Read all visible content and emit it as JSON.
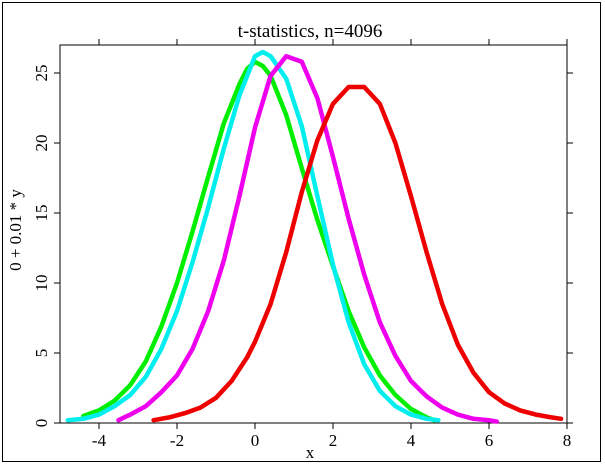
{
  "chart_data": {
    "type": "line",
    "title": "t-statistics, n=4096",
    "xlabel": "x",
    "ylabel": "0 + 0.01 * y",
    "xlim": [
      -5,
      8
    ],
    "ylim": [
      0,
      27
    ],
    "xticks": [
      -4,
      -2,
      0,
      2,
      4,
      6,
      8
    ],
    "xtick_labels": [
      "-4",
      "-2",
      "0",
      "2",
      "4",
      "6",
      "8"
    ],
    "yticks": [
      0,
      5,
      10,
      15,
      20,
      25
    ],
    "ytick_labels": [
      "0",
      "5",
      "10",
      "15",
      "20",
      "25"
    ],
    "grid": false,
    "series": [
      {
        "color": "#00ee00",
        "x": [
          -4.4,
          -4.0,
          -3.6,
          -3.2,
          -2.8,
          -2.4,
          -2.0,
          -1.6,
          -1.2,
          -0.8,
          -0.4,
          -0.2,
          0.0,
          0.2,
          0.4,
          0.8,
          1.2,
          1.6,
          2.0,
          2.4,
          2.8,
          3.2,
          3.6,
          4.0,
          4.4,
          4.6
        ],
        "y": [
          0.5,
          0.9,
          1.6,
          2.7,
          4.4,
          6.9,
          10.0,
          13.7,
          17.6,
          21.4,
          24.2,
          25.3,
          25.8,
          25.5,
          24.8,
          22.0,
          18.2,
          14.5,
          11.2,
          8.0,
          5.4,
          3.4,
          2.0,
          1.0,
          0.4,
          0.2
        ]
      },
      {
        "color": "#00eeee",
        "x": [
          -4.8,
          -4.4,
          -4.0,
          -3.6,
          -3.2,
          -2.8,
          -2.4,
          -2.0,
          -1.6,
          -1.2,
          -0.8,
          -0.4,
          0.0,
          0.2,
          0.4,
          0.8,
          1.2,
          1.6,
          2.0,
          2.4,
          2.8,
          3.2,
          3.6,
          4.0,
          4.4,
          4.7
        ],
        "y": [
          0.2,
          0.3,
          0.6,
          1.2,
          2.0,
          3.3,
          5.3,
          8.0,
          11.5,
          15.4,
          19.6,
          23.4,
          26.2,
          26.5,
          26.2,
          24.6,
          21.2,
          16.2,
          11.3,
          7.2,
          4.2,
          2.3,
          1.2,
          0.6,
          0.3,
          0.2
        ]
      },
      {
        "color": "#ee00ee",
        "x": [
          -3.5,
          -3.2,
          -2.8,
          -2.4,
          -2.0,
          -1.6,
          -1.2,
          -0.8,
          -0.4,
          0.0,
          0.4,
          0.8,
          1.2,
          1.6,
          2.0,
          2.4,
          2.8,
          3.2,
          3.6,
          4.0,
          4.4,
          4.8,
          5.2,
          5.6,
          6.0,
          6.2
        ],
        "y": [
          0.2,
          0.6,
          1.2,
          2.2,
          3.4,
          5.3,
          8.0,
          11.6,
          16.2,
          21.1,
          24.8,
          26.2,
          25.8,
          23.2,
          19.0,
          14.6,
          10.6,
          7.2,
          4.8,
          3.0,
          1.9,
          1.1,
          0.6,
          0.3,
          0.2,
          0.1
        ]
      },
      {
        "color": "#ee0000",
        "x": [
          -2.6,
          -2.2,
          -1.8,
          -1.4,
          -1.0,
          -0.6,
          -0.2,
          0.0,
          0.4,
          0.8,
          1.2,
          1.6,
          2.0,
          2.4,
          2.8,
          3.2,
          3.6,
          4.0,
          4.4,
          4.8,
          5.2,
          5.6,
          6.0,
          6.4,
          6.8,
          7.2,
          7.6,
          7.85
        ],
        "y": [
          0.2,
          0.4,
          0.7,
          1.1,
          1.8,
          3.0,
          4.7,
          5.8,
          8.5,
          12.2,
          16.5,
          20.2,
          22.8,
          24.0,
          24.0,
          22.8,
          20.0,
          16.2,
          12.2,
          8.5,
          5.6,
          3.6,
          2.2,
          1.4,
          0.9,
          0.6,
          0.4,
          0.3
        ]
      }
    ]
  }
}
